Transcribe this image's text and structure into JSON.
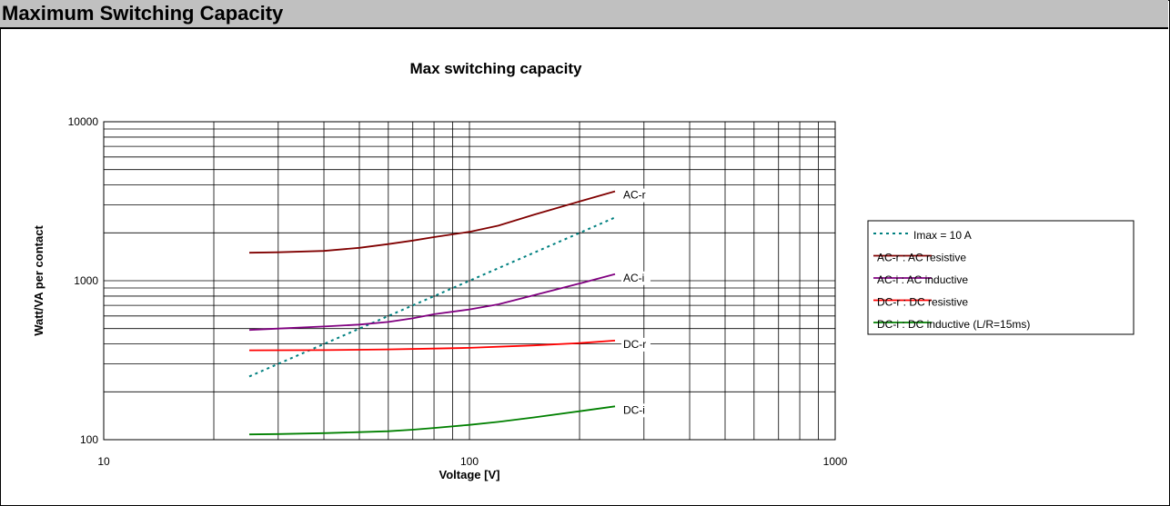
{
  "header": {
    "title": "Maximum Switching Capacity"
  },
  "chart_data": {
    "type": "line",
    "title": "Max switching capacity",
    "xlabel": "Voltage [V]",
    "ylabel": "Watt/VA per contact",
    "xscale": "log",
    "yscale": "log",
    "xlim": [
      10,
      1000
    ],
    "ylim": [
      100,
      10000
    ],
    "x_ticks": [
      "10",
      "100",
      "1000"
    ],
    "y_ticks": [
      "100",
      "1000",
      "10000"
    ],
    "grid": true,
    "legend_position": "right",
    "series": [
      {
        "name": "Imax = 10 A",
        "end_label": "",
        "color": "#008080",
        "dash": true,
        "x": [
          25,
          250
        ],
        "y": [
          250,
          2500
        ]
      },
      {
        "name": "AC-r : AC resistive",
        "end_label": "AC-r",
        "color": "#800000",
        "dash": false,
        "x": [
          25,
          30,
          40,
          50,
          60,
          70,
          80,
          100,
          120,
          150,
          200,
          250
        ],
        "y": [
          1500,
          1510,
          1540,
          1610,
          1700,
          1790,
          1880,
          2030,
          2220,
          2600,
          3150,
          3650
        ]
      },
      {
        "name": "AC-i : AC inductive",
        "end_label": "AC-i",
        "color": "#800080",
        "dash": false,
        "x": [
          25,
          30,
          40,
          50,
          60,
          70,
          80,
          100,
          120,
          150,
          200,
          250
        ],
        "y": [
          490,
          500,
          515,
          530,
          550,
          580,
          615,
          660,
          710,
          810,
          960,
          1100
        ]
      },
      {
        "name": "DC-r : DC resistive",
        "end_label": "DC-r",
        "color": "#ff0000",
        "dash": false,
        "x": [
          25,
          40,
          60,
          80,
          100,
          150,
          200,
          250
        ],
        "y": [
          365,
          366,
          370,
          374,
          378,
          392,
          405,
          420
        ]
      },
      {
        "name": "DC-i : DC inductive (L/R=15ms)",
        "end_label": "DC-i",
        "color": "#008000",
        "dash": false,
        "x": [
          25,
          30,
          40,
          50,
          60,
          70,
          80,
          100,
          120,
          150,
          200,
          250
        ],
        "y": [
          108,
          108.5,
          110,
          111.5,
          113,
          115.5,
          118.5,
          124,
          129.5,
          138,
          151,
          162
        ]
      }
    ]
  }
}
